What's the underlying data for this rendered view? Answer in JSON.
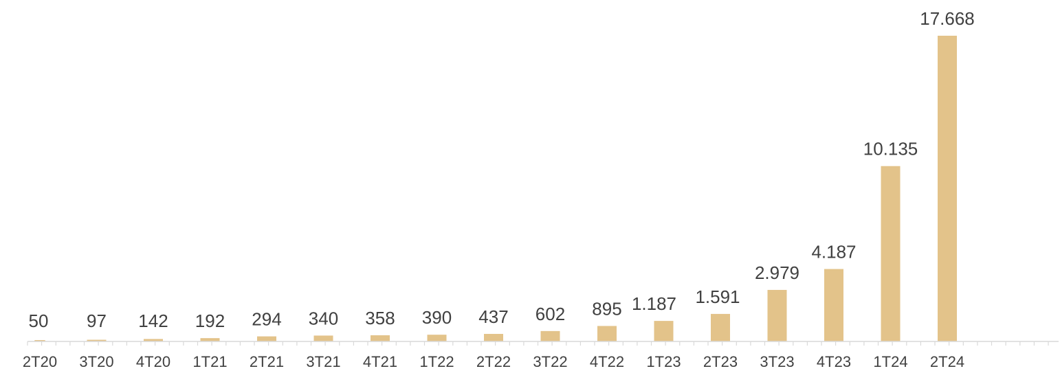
{
  "chart_data": {
    "type": "bar",
    "categories": [
      "2T20",
      "3T20",
      "4T20",
      "1T21",
      "2T21",
      "3T21",
      "4T21",
      "1T22",
      "2T22",
      "3T22",
      "4T22",
      "1T23",
      "2T23",
      "3T23",
      "4T23",
      "1T24",
      "2T24"
    ],
    "values": [
      50,
      97,
      142,
      192,
      294,
      340,
      358,
      390,
      437,
      602,
      895,
      1187,
      1591,
      2979,
      4187,
      10135,
      17668
    ],
    "data_labels": [
      "50",
      "97",
      "142",
      "192",
      "294",
      "340",
      "358",
      "390",
      "437",
      "602",
      "895",
      "1.187",
      "1.591",
      "2.979",
      "4.187",
      "10.135",
      "17.668"
    ],
    "title": "",
    "xlabel": "",
    "ylabel": "",
    "ylim": [
      0,
      17668
    ],
    "grid": false,
    "legend": "none",
    "colors": {
      "bar": "#e3c38a",
      "text": "#404040",
      "axis": "#d9d9d9"
    }
  }
}
